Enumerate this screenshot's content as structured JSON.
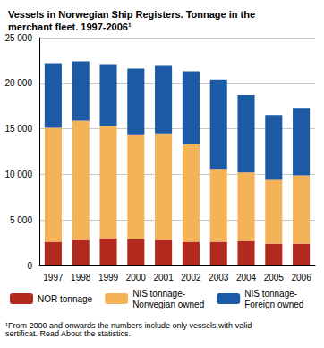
{
  "chart_data": {
    "type": "bar",
    "title": "Vessels in Norwegian Ship Registers. Tonnage in the merchant fleet. 1997-2006¹",
    "categories": [
      "1997",
      "1998",
      "1999",
      "2000",
      "2001",
      "2002",
      "2003",
      "2004",
      "2005",
      "2006"
    ],
    "series": [
      {
        "name": "NOR tonnage",
        "color": "#b22a1e",
        "values": [
          2600,
          2800,
          3000,
          2900,
          2800,
          2600,
          2600,
          2700,
          2400,
          2400
        ]
      },
      {
        "name": "NIS tonnage-Norwegian owned",
        "color": "#f5b358",
        "values": [
          12500,
          13100,
          12300,
          11500,
          11700,
          10700,
          8000,
          7500,
          7000,
          7500
        ]
      },
      {
        "name": "NIS tonnage-Foreign owned",
        "color": "#1c5aa6",
        "values": [
          7100,
          6500,
          6800,
          7200,
          7400,
          8000,
          9800,
          8500,
          7100,
          7400
        ]
      }
    ],
    "stacked": true,
    "ylim": [
      0,
      25000
    ],
    "yticks": [
      0,
      {
        "value": 5000,
        "label": "5 000"
      },
      {
        "value": 10000,
        "label": "10 000"
      },
      {
        "value": 15000,
        "label": "15 000"
      },
      {
        "value": 20000,
        "label": "20 000"
      },
      {
        "value": 25000,
        "label": "25 000"
      }
    ],
    "grid": true,
    "legend": "bottom",
    "annotations": [
      "¹From 2000 and onwards the numbers include only vessels with valid sertificat. Read About the statistics."
    ]
  }
}
